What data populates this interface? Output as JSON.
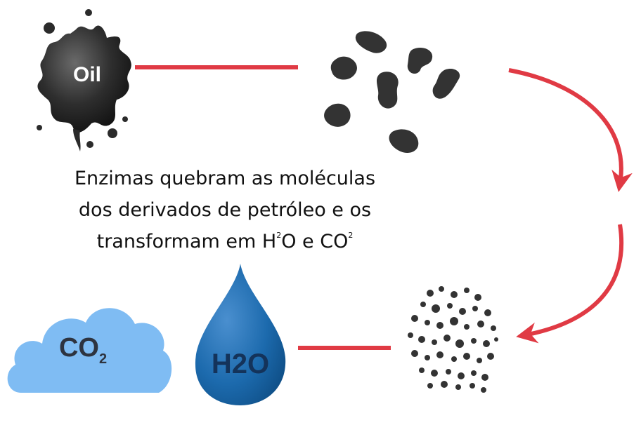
{
  "caption": {
    "line1": "Enzimas quebram as moléculas",
    "line2": "dos derivados de petróleo e os",
    "line3_prefix": "transformam em H",
    "line3_sup1": "2",
    "line3_mid": "O e CO",
    "line3_sup2": "2"
  },
  "oil_label": "Oil",
  "water_label": "H2O",
  "co2": {
    "main": "CO",
    "sub": "2"
  },
  "colors": {
    "arrow": "#e03a44",
    "oil": "#2f2f2f",
    "particles": "#333333",
    "cloud": "#7fbcf3",
    "water": "#1c6aad"
  },
  "icons": [
    "oil-splat-icon",
    "oil-particles-icon",
    "micro-particles-icon",
    "water-drop-icon",
    "co2-cloud-icon"
  ]
}
